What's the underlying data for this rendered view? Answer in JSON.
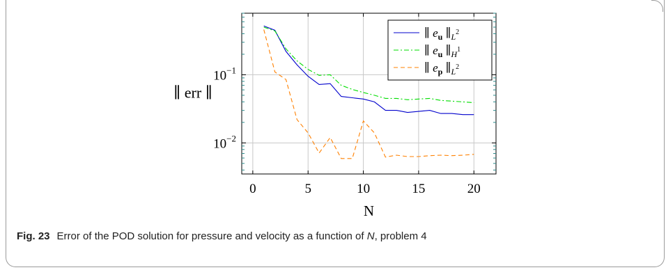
{
  "chart_data": {
    "type": "line",
    "xlabel": "N",
    "ylabel": "∥ err ∥",
    "y_scale": "log",
    "xlim": [
      -1,
      22
    ],
    "ylim": [
      0.0035,
      0.8
    ],
    "xticks": [
      0,
      5,
      10,
      15,
      20
    ],
    "yticks": [
      {
        "value": 0.1,
        "base": "10",
        "exp": "−1"
      },
      {
        "value": 0.01,
        "base": "10",
        "exp": "−2"
      }
    ],
    "grid": true,
    "legend_position": "top-right",
    "series": [
      {
        "name": "∥ e_u ∥_L2",
        "legend_main": "∥ e",
        "legend_sub": "u",
        "legend_mid": " ∥",
        "legend_norm": "L",
        "legend_sup": "2",
        "color": "#0000cc",
        "dash": "solid",
        "x": [
          1,
          2,
          3,
          4,
          5,
          6,
          7,
          8,
          9,
          10,
          11,
          12,
          13,
          14,
          15,
          16,
          17,
          18,
          19,
          20
        ],
        "y": [
          0.52,
          0.45,
          0.22,
          0.14,
          0.095,
          0.072,
          0.074,
          0.048,
          0.046,
          0.044,
          0.04,
          0.03,
          0.03,
          0.028,
          0.029,
          0.03,
          0.027,
          0.027,
          0.026,
          0.026
        ]
      },
      {
        "name": "∥ e_u ∥_H1",
        "legend_main": "∥ e",
        "legend_sub": "u",
        "legend_mid": " ∥",
        "legend_norm": "H",
        "legend_sup": "1",
        "color": "#00dd00",
        "dash": "dashdot",
        "x": [
          1,
          2,
          3,
          4,
          5,
          6,
          7,
          8,
          9,
          10,
          11,
          12,
          13,
          14,
          15,
          16,
          17,
          18,
          19,
          20
        ],
        "y": [
          0.5,
          0.44,
          0.24,
          0.16,
          0.12,
          0.098,
          0.1,
          0.07,
          0.061,
          0.055,
          0.05,
          0.045,
          0.045,
          0.043,
          0.044,
          0.045,
          0.042,
          0.041,
          0.04,
          0.039
        ]
      },
      {
        "name": "∥ e_p ∥_L2",
        "legend_main": "∥ e",
        "legend_sub": "p",
        "legend_mid": " ∥",
        "legend_norm": "L",
        "legend_sup": "2",
        "color": "#ff8000",
        "dash": "dashed",
        "x": [
          1,
          2,
          3,
          4,
          5,
          6,
          7,
          8,
          9,
          10,
          11,
          12,
          13,
          14,
          15,
          16,
          17,
          18,
          19,
          20
        ],
        "y": [
          0.46,
          0.11,
          0.085,
          0.022,
          0.014,
          0.0071,
          0.012,
          0.0059,
          0.0059,
          0.021,
          0.014,
          0.0062,
          0.0066,
          0.0063,
          0.0063,
          0.0065,
          0.0066,
          0.0065,
          0.0066,
          0.0068
        ]
      }
    ]
  },
  "caption": {
    "label": "Fig. 23",
    "text_before": "Error of the POD solution for pressure and velocity as a function of ",
    "italic": "N",
    "text_after": ", problem 4"
  }
}
